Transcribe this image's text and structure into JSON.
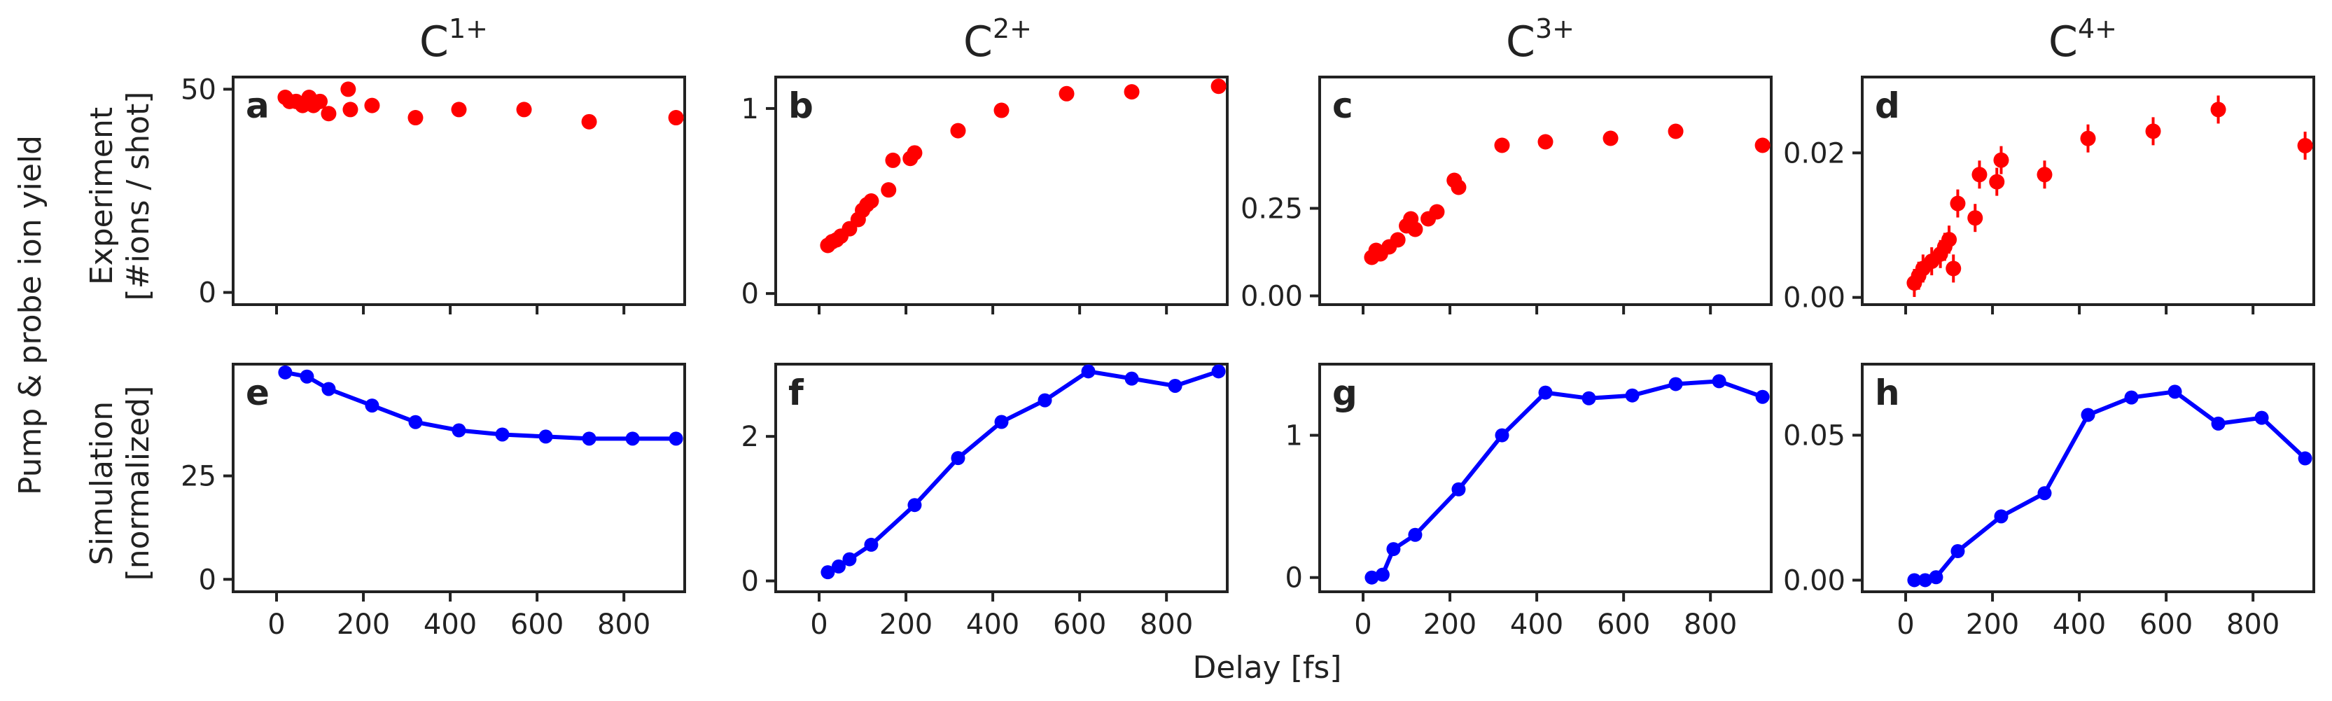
{
  "figure": {
    "ylabel_outer": "Pump & probe ion yield",
    "xlabel_shared": "Delay [fs]",
    "row_labels": [
      [
        "Experiment",
        "[#ions / shot]"
      ],
      [
        "Simulation",
        "[normalized]"
      ]
    ],
    "columns": [
      {
        "base": "C",
        "sup": "1+"
      },
      {
        "base": "C",
        "sup": "2+"
      },
      {
        "base": "C",
        "sup": "3+"
      },
      {
        "base": "C",
        "sup": "4+"
      }
    ],
    "colors": {
      "experiment": "#ff0000",
      "simulation": "#0000ff",
      "axis": "#222222"
    }
  },
  "chart_data": [
    {
      "type": "scatter",
      "panel": "a",
      "row": "experiment",
      "ion": "C1+",
      "xlim": [
        -100,
        940
      ],
      "ylim": [
        -3,
        53
      ],
      "xticks": [
        0,
        200,
        400,
        600,
        800
      ],
      "yticks": [
        0,
        50
      ],
      "ytick_labels": [
        "0",
        "50"
      ],
      "x": [
        20,
        30,
        45,
        60,
        75,
        85,
        100,
        120,
        165,
        170,
        220,
        320,
        420,
        570,
        720,
        920
      ],
      "y": [
        48,
        47,
        47,
        46,
        48,
        46,
        47,
        44,
        50,
        45,
        46,
        43,
        45,
        45,
        42,
        43
      ]
    },
    {
      "type": "scatter",
      "panel": "b",
      "row": "experiment",
      "ion": "C2+",
      "xlim": [
        -100,
        940
      ],
      "ylim": [
        -0.06,
        1.17
      ],
      "xticks": [
        0,
        200,
        400,
        600,
        800
      ],
      "yticks": [
        0,
        1
      ],
      "ytick_labels": [
        "0",
        "1"
      ],
      "x": [
        20,
        30,
        40,
        50,
        70,
        90,
        100,
        110,
        120,
        160,
        170,
        210,
        220,
        320,
        420,
        570,
        720,
        920
      ],
      "y": [
        0.26,
        0.28,
        0.29,
        0.31,
        0.35,
        0.4,
        0.45,
        0.48,
        0.5,
        0.56,
        0.72,
        0.73,
        0.76,
        0.88,
        0.99,
        1.08,
        1.09,
        1.12
      ]
    },
    {
      "type": "scatter",
      "panel": "c",
      "row": "experiment",
      "ion": "C3+",
      "xlim": [
        -100,
        940
      ],
      "ylim": [
        -0.025,
        0.625
      ],
      "xticks": [
        0,
        200,
        400,
        600,
        800
      ],
      "yticks": [
        0,
        0.25
      ],
      "ytick_labels": [
        "0.00",
        "0.25"
      ],
      "x": [
        20,
        30,
        40,
        60,
        80,
        100,
        110,
        120,
        150,
        170,
        210,
        220,
        320,
        420,
        570,
        720,
        920
      ],
      "y": [
        0.11,
        0.13,
        0.12,
        0.14,
        0.16,
        0.2,
        0.22,
        0.19,
        0.22,
        0.24,
        0.33,
        0.31,
        0.43,
        0.44,
        0.45,
        0.47,
        0.43
      ]
    },
    {
      "type": "scatter",
      "panel": "d",
      "row": "experiment",
      "ion": "C4+",
      "xlim": [
        -100,
        940
      ],
      "ylim": [
        -0.001,
        0.0305
      ],
      "xticks": [
        0,
        200,
        400,
        600,
        800
      ],
      "yticks": [
        0,
        0.02
      ],
      "ytick_labels": [
        "0.00",
        "0.02"
      ],
      "x": [
        20,
        30,
        40,
        60,
        80,
        90,
        100,
        110,
        120,
        160,
        170,
        210,
        220,
        320,
        420,
        570,
        720,
        920
      ],
      "y": [
        0.002,
        0.003,
        0.004,
        0.005,
        0.006,
        0.007,
        0.008,
        0.004,
        0.013,
        0.011,
        0.017,
        0.016,
        0.019,
        0.017,
        0.022,
        0.023,
        0.026,
        0.021
      ]
    },
    {
      "type": "line",
      "panel": "e",
      "row": "simulation",
      "ion": "C1+",
      "xlim": [
        -100,
        940
      ],
      "ylim": [
        -3,
        52
      ],
      "xticks": [
        0,
        200,
        400,
        600,
        800
      ],
      "yticks": [
        0,
        25
      ],
      "ytick_labels": [
        "0",
        "25"
      ],
      "x": [
        20,
        70,
        120,
        220,
        320,
        420,
        520,
        620,
        720,
        820,
        920
      ],
      "y": [
        50,
        49,
        46,
        42,
        38,
        36,
        35,
        34.5,
        34,
        34,
        34
      ]
    },
    {
      "type": "line",
      "panel": "f",
      "row": "simulation",
      "ion": "C2+",
      "xlim": [
        -100,
        940
      ],
      "ylim": [
        -0.15,
        3.0
      ],
      "xticks": [
        0,
        200,
        400,
        600,
        800
      ],
      "yticks": [
        0,
        2
      ],
      "ytick_labels": [
        "0",
        "2"
      ],
      "x": [
        20,
        45,
        70,
        120,
        220,
        320,
        420,
        520,
        620,
        720,
        820,
        920
      ],
      "y": [
        0.12,
        0.2,
        0.3,
        0.5,
        1.05,
        1.7,
        2.2,
        2.5,
        2.9,
        2.8,
        2.7,
        2.9
      ]
    },
    {
      "type": "line",
      "panel": "g",
      "row": "simulation",
      "ion": "C3+",
      "xlim": [
        -100,
        940
      ],
      "ylim": [
        -0.1,
        1.5
      ],
      "xticks": [
        0,
        200,
        400,
        600,
        800
      ],
      "yticks": [
        0,
        1
      ],
      "ytick_labels": [
        "0",
        "1"
      ],
      "x": [
        20,
        45,
        70,
        120,
        220,
        320,
        420,
        520,
        620,
        720,
        820,
        920
      ],
      "y": [
        0.0,
        0.02,
        0.2,
        0.3,
        0.62,
        1.0,
        1.3,
        1.26,
        1.28,
        1.36,
        1.38,
        1.27
      ]
    },
    {
      "type": "line",
      "panel": "h",
      "row": "simulation",
      "ion": "C4+",
      "xlim": [
        -100,
        940
      ],
      "ylim": [
        -0.004,
        0.0745
      ],
      "xticks": [
        0,
        200,
        400,
        600,
        800
      ],
      "yticks": [
        0,
        0.05
      ],
      "ytick_labels": [
        "0.00",
        "0.05"
      ],
      "x": [
        20,
        45,
        70,
        120,
        220,
        320,
        420,
        520,
        620,
        720,
        820,
        920
      ],
      "y": [
        0.0,
        0.0,
        0.001,
        0.01,
        0.022,
        0.03,
        0.057,
        0.063,
        0.065,
        0.054,
        0.056,
        0.042
      ]
    }
  ]
}
